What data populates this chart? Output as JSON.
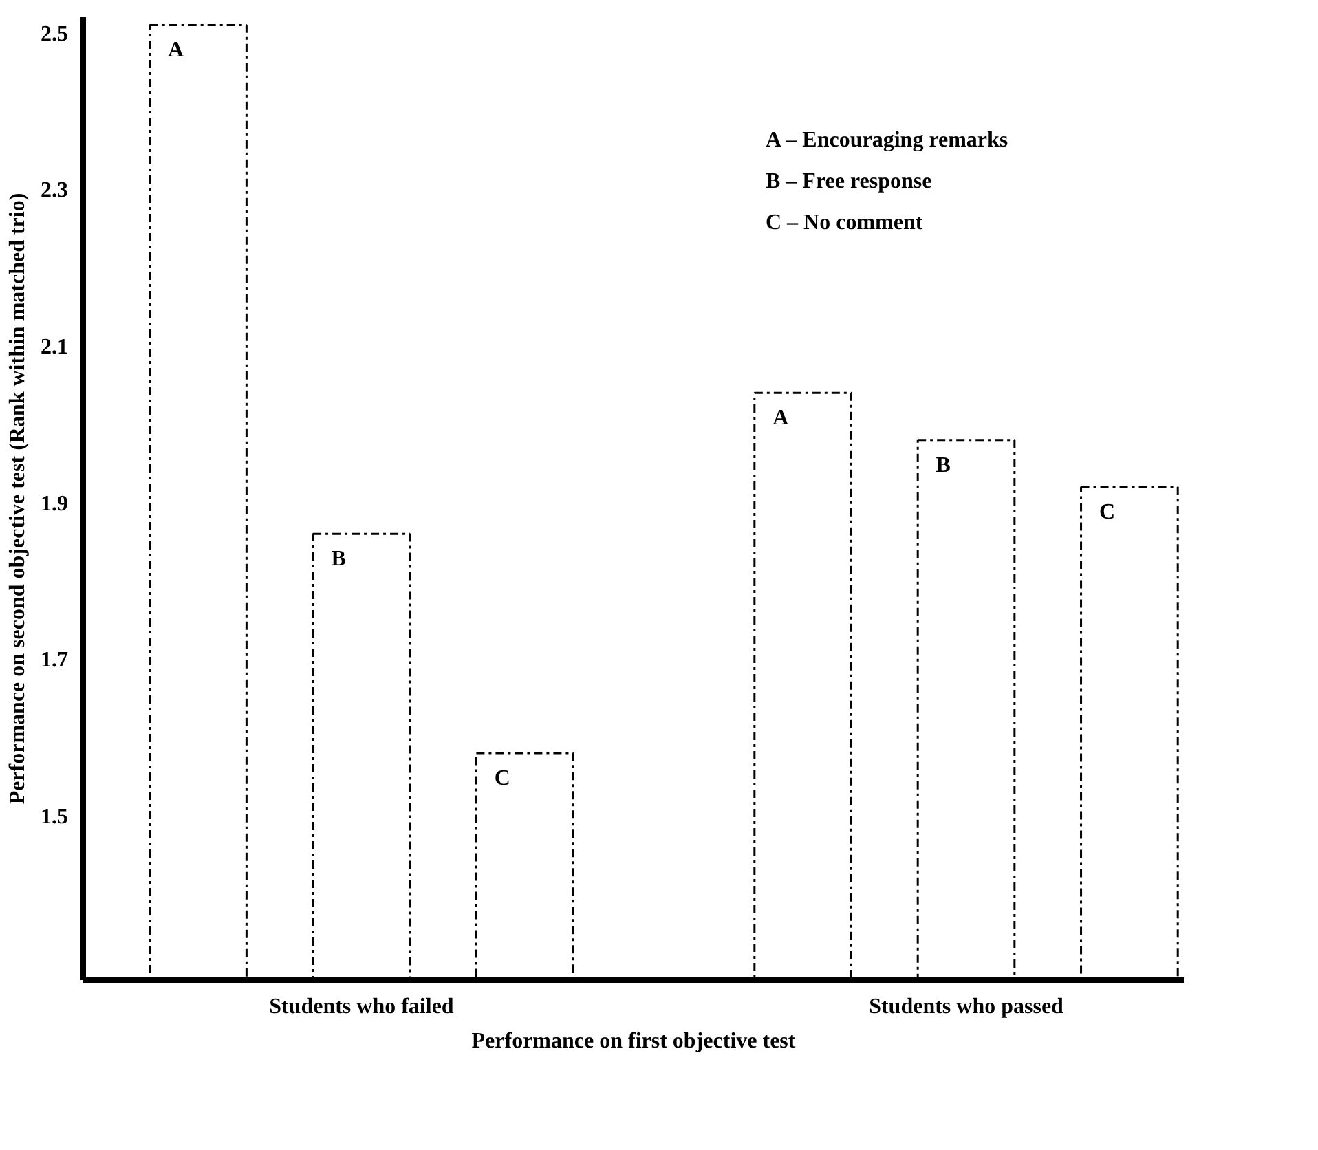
{
  "chart_data": {
    "type": "bar",
    "xlabel": "Performance on first objective test",
    "ylabel": "Performance on second objective test (Rank within matched trio)",
    "categories": [
      "Students who failed",
      "Students who passed"
    ],
    "series": [
      {
        "name": "A",
        "color": "#000000",
        "values": [
          2.51,
          2.04
        ]
      },
      {
        "name": "B",
        "color": "#000000",
        "values": [
          1.86,
          1.98
        ]
      },
      {
        "name": "C",
        "color": "#000000",
        "values": [
          1.58,
          1.92
        ]
      }
    ],
    "ylim": [
      1.29,
      2.52
    ],
    "yticks": [
      1.5,
      1.7,
      1.9,
      2.1,
      2.3,
      2.5
    ],
    "annotations": [
      "A – Encouraging remarks",
      "B – Free response",
      "C – No comment"
    ],
    "line_style": "dashed",
    "grid": false
  }
}
